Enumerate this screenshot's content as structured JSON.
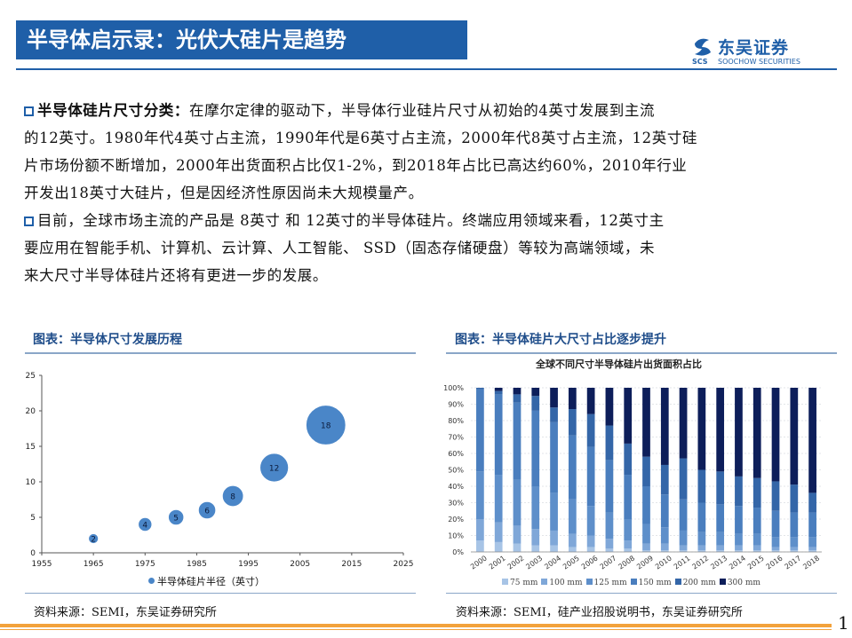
{
  "header": {
    "title": "半导体启示录：光伏大硅片是趋势",
    "logo_text": "东吴证券",
    "logo_en": "SOOCHOW SECURITIES",
    "logo_mark_text": "SCS"
  },
  "body": {
    "para1_lead": "半导体硅片尺寸分类：",
    "para1_lines": [
      "在摩尔定律的驱动下，半导体行业硅片尺寸从初始的4英寸发展到主流",
      "的12英寸。1980年代4英寸占主流，1990年代是6英寸占主流，2000年代8英寸占主流，12英寸硅",
      "片市场份额不断增加，2000年出货面积占比仅1-2%，到2018年占比已高达约60%，2010年行业",
      "开发出18英寸大硅片，但是因经济性原因尚未大规模量产。"
    ],
    "para2_lines": [
      "目前，全球市场主流的产品是 8英寸 和 12英寸的半导体硅片。终端应用领域来看，12英寸主",
      "要应用在智能手机、计算机、云计算、人工智能、 SSD（固态存储硬盘）等较为高端领域，未",
      "来大尺寸半导体硅片还将有更进一步的发展。"
    ]
  },
  "figures": {
    "left_title": "图表：半导体尺寸发展历程",
    "right_title": "图表：半导体硅片大尺寸占比逐步提升",
    "left_source": "资料来源：SEMI，东吴证券研究所",
    "right_source": "资料来源：SEMI，硅产业招股说明书，东吴证券研究所"
  },
  "page_number": "1",
  "colors": {
    "brand_blue": "#1f5fa8",
    "orange": "#f3a23c",
    "bubble": "#4a86c8"
  },
  "chart_data": [
    {
      "type": "scatter",
      "subtype": "bubble",
      "title": "",
      "series": [
        {
          "name": "半导体硅片半径（英寸）"
        }
      ],
      "points": [
        {
          "x": 1965,
          "y": 2,
          "size": 2,
          "label": "2"
        },
        {
          "x": 1975,
          "y": 4,
          "size": 4,
          "label": "4"
        },
        {
          "x": 1981,
          "y": 5,
          "size": 5,
          "label": "5"
        },
        {
          "x": 1987,
          "y": 6,
          "size": 6,
          "label": "6"
        },
        {
          "x": 1992,
          "y": 8,
          "size": 8,
          "label": "8"
        },
        {
          "x": 2000,
          "y": 12,
          "size": 12,
          "label": "12"
        },
        {
          "x": 2010,
          "y": 18,
          "size": 18,
          "label": "18"
        }
      ],
      "xlim": [
        1955,
        2025
      ],
      "ylim": [
        0,
        25
      ],
      "x_ticks": [
        "1955",
        "1965",
        "1975",
        "1985",
        "1995",
        "2005",
        "2015",
        "2025"
      ],
      "y_ticks": [
        "0",
        "5",
        "10",
        "15",
        "20",
        "25"
      ],
      "grid": false,
      "legend": "bottom"
    },
    {
      "type": "bar",
      "stacked": true,
      "percent": true,
      "title": "全球不同尺寸半导体硅片出货面积占比",
      "categories": [
        "2000",
        "2001",
        "2002",
        "2003",
        "2004",
        "2005",
        "2006",
        "2007",
        "2008",
        "2009",
        "2010",
        "2011",
        "2012",
        "2013",
        "2014",
        "2015",
        "2016",
        "2017",
        "2018"
      ],
      "series": [
        {
          "name": "75 mm",
          "color": "#a7c4e6",
          "values": [
            7,
            6,
            5,
            4,
            4,
            3,
            3,
            2,
            2,
            1,
            1,
            1,
            1,
            1,
            1,
            1,
            1,
            1,
            1
          ]
        },
        {
          "name": "100 mm",
          "color": "#7fa7d8",
          "values": [
            13,
            12,
            11,
            10,
            9,
            8,
            7,
            6,
            5,
            4,
            4,
            3,
            3,
            3,
            3,
            3,
            2,
            2,
            2
          ]
        },
        {
          "name": "125 mm",
          "color": "#5e8fca",
          "values": [
            29,
            29,
            28,
            26,
            23,
            21,
            18,
            16,
            13,
            12,
            10,
            9,
            8,
            8,
            7,
            7,
            6,
            6,
            6
          ]
        },
        {
          "name": "150 mm",
          "color": "#4a7ebe",
          "values": [
            50,
            49,
            47,
            46,
            43,
            39,
            36,
            32,
            27,
            23,
            20,
            19,
            18,
            17,
            17,
            16,
            16,
            15,
            15
          ]
        },
        {
          "name": "200 mm",
          "color": "#3466a8",
          "values": [
            1,
            2,
            5,
            9,
            9,
            16,
            20,
            21,
            19,
            18,
            18,
            25,
            20,
            20,
            18,
            18,
            18,
            17,
            12
          ]
        },
        {
          "name": "300 mm",
          "color": "#0d1e5a",
          "values": [
            0,
            2,
            4,
            5,
            12,
            13,
            16,
            23,
            34,
            42,
            47,
            43,
            50,
            51,
            54,
            55,
            57,
            59,
            64
          ]
        }
      ],
      "y_ticks": [
        "0%",
        "10%",
        "20%",
        "30%",
        "40%",
        "50%",
        "60%",
        "70%",
        "80%",
        "90%",
        "100%"
      ],
      "ylim": [
        0,
        100
      ],
      "legend": "bottom"
    }
  ]
}
